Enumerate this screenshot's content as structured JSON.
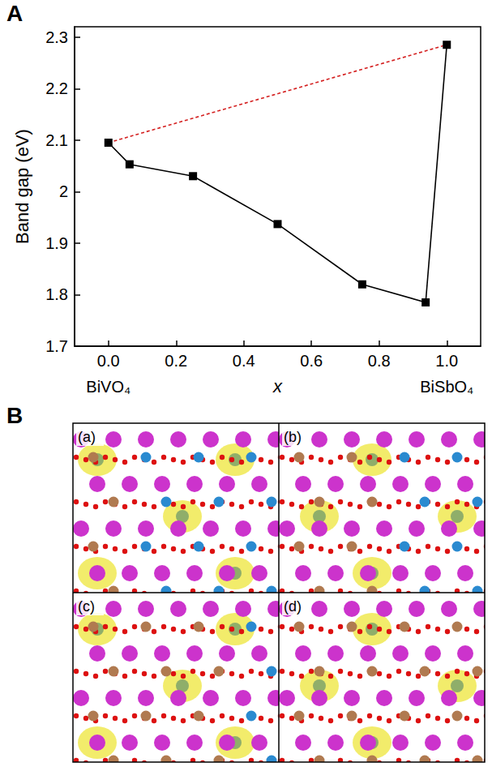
{
  "chart_data": {
    "type": "line",
    "panel_label": "A",
    "y_label": "Band gap (eV)",
    "x_label": "x",
    "xlim": [
      -0.1,
      1.1
    ],
    "xticks": [
      {
        "value": 0,
        "label": "0.0"
      },
      0.2,
      0.4,
      0.6,
      0.8,
      {
        "value": 1,
        "label": "1.0"
      }
    ],
    "ylim": [
      1.7,
      2.32
    ],
    "yticks": [
      1.7,
      1.8,
      1.9,
      2.0,
      2.1,
      2.2,
      2.3
    ],
    "grid": false,
    "series": [
      {
        "x": [
          0,
          0.0625,
          0.25,
          0.5,
          0.75,
          0.9375,
          1.0
        ],
        "values": [
          2.095,
          2.053,
          2.03,
          1.937,
          1.82,
          1.785,
          2.285
        ],
        "color": "#000000",
        "marker": "square",
        "line_style": "solid"
      },
      {
        "x": [
          0,
          1.0
        ],
        "values": [
          2.095,
          2.285
        ],
        "color": "#d42020",
        "marker": "none",
        "line_style": "dashed"
      }
    ],
    "annotations": [
      {
        "text": "BiVO₄",
        "x": 0
      },
      {
        "text": "BiSbO₄",
        "x": 1.0
      }
    ]
  },
  "figure_b": {
    "panel_label": "B",
    "subpanels": [
      "(a)",
      "(b)",
      "(c)",
      "(d)"
    ]
  }
}
